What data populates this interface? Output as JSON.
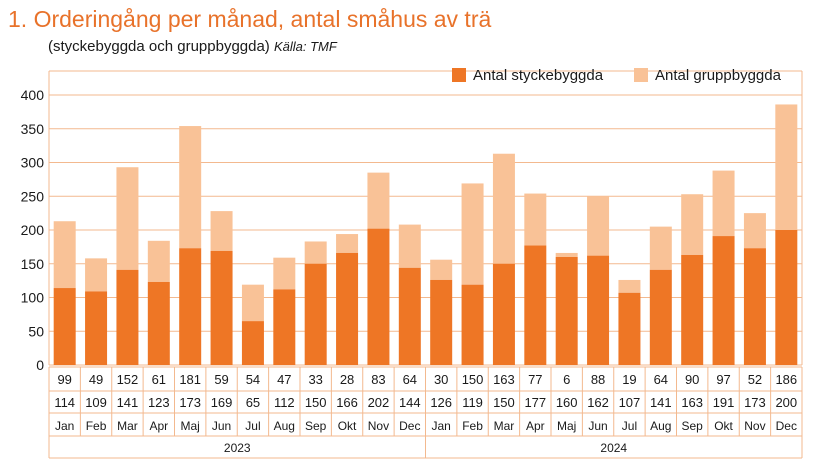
{
  "title": "1. Orderingång per månad, antal småhus av trä",
  "subtitle": "(styckebyggda och gruppbyggda)",
  "source": "Källa: TMF",
  "colors": {
    "primary": "#ee7625",
    "secondary": "#f9c297",
    "grid": "#f3b98f",
    "title": "#e8722a"
  },
  "chart_data": {
    "type": "bar",
    "stacked": true,
    "ylim": [
      0,
      400
    ],
    "yticks": [
      0,
      50,
      100,
      150,
      200,
      250,
      300,
      350,
      400
    ],
    "grid": true,
    "legend_position": "top-right",
    "categories": [
      "Jan",
      "Feb",
      "Mar",
      "Apr",
      "Maj",
      "Jun",
      "Jul",
      "Aug",
      "Sep",
      "Okt",
      "Nov",
      "Dec",
      "Jan",
      "Feb",
      "Mar",
      "Apr",
      "Maj",
      "Jun",
      "Jul",
      "Aug",
      "Sep",
      "Okt",
      "Nov",
      "Dec"
    ],
    "years": [
      {
        "label": "2023",
        "count": 12
      },
      {
        "label": "2024",
        "count": 12
      }
    ],
    "series": [
      {
        "name": "Antal styckebyggda",
        "color": "#ee7625",
        "values": [
          114,
          109,
          141,
          123,
          173,
          169,
          65,
          112,
          150,
          166,
          202,
          144,
          126,
          119,
          150,
          177,
          160,
          162,
          107,
          141,
          163,
          191,
          173,
          200
        ]
      },
      {
        "name": "Antal gruppbyggda",
        "color": "#f9c297",
        "values": [
          99,
          49,
          152,
          61,
          181,
          59,
          54,
          47,
          33,
          28,
          83,
          64,
          30,
          150,
          163,
          77,
          6,
          88,
          19,
          64,
          90,
          97,
          52,
          186
        ]
      }
    ]
  }
}
